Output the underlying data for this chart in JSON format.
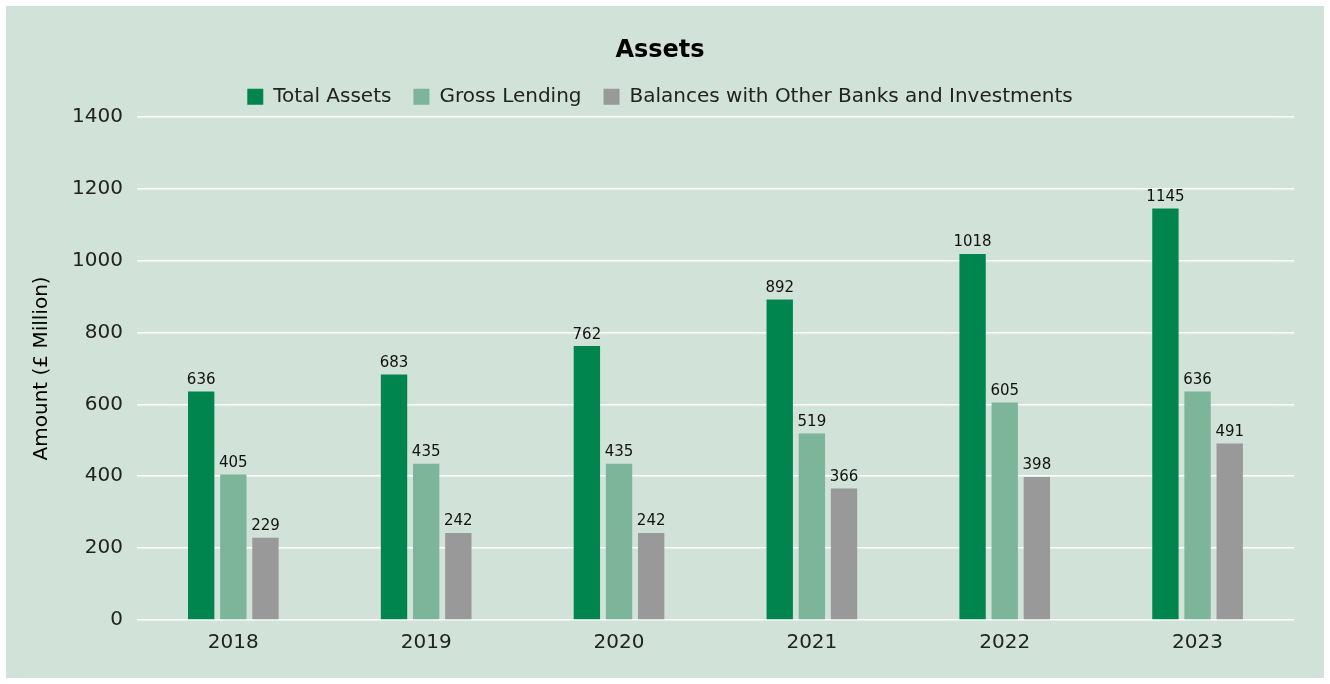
{
  "chart_data": {
    "type": "bar",
    "title": "Assets",
    "ylabel": "Amount (£ Million)",
    "categories": [
      "2018",
      "2019",
      "2020",
      "2021",
      "2022",
      "2023"
    ],
    "series": [
      {
        "name": "Total Assets",
        "color": "#00854f",
        "values": [
          636,
          683,
          762,
          892,
          1018,
          1145
        ]
      },
      {
        "name": "Gross Lending",
        "color": "#7db59a",
        "values": [
          405,
          435,
          435,
          519,
          605,
          636
        ]
      },
      {
        "name": "Balances with Other Banks and Investments",
        "color": "#999999",
        "values": [
          229,
          242,
          242,
          366,
          398,
          491
        ]
      }
    ],
    "ylim": [
      0,
      1400
    ],
    "yticks": [
      0,
      200,
      400,
      600,
      800,
      1000,
      1200,
      1400
    ],
    "grid": "y",
    "legend": "top",
    "data_labels": true
  }
}
